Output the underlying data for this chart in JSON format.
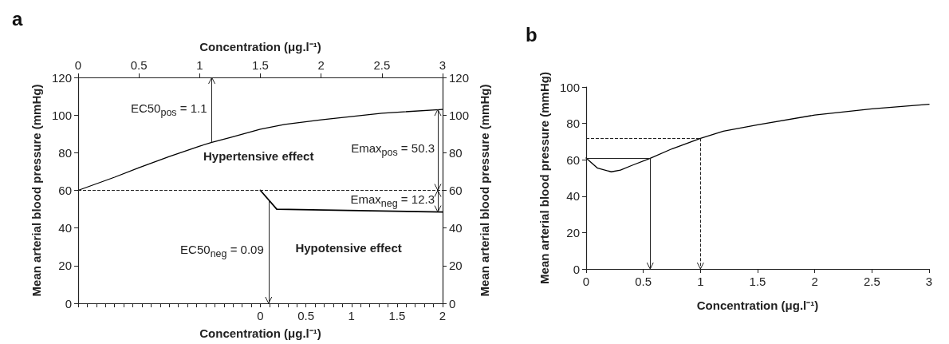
{
  "chart_data": [
    {
      "type": "line",
      "title": "a",
      "xlabel": "Concentration (μg.l⁻¹)",
      "x2label": "Concentration (μg.l⁻¹)",
      "ylabel": "Mean arterial blood pressure (mmHg)",
      "y2label": "Mean arterial blood pressure (mmHg)",
      "xlim": [
        -2,
        2
      ],
      "xticks": [
        {
          "value": -2,
          "label": null
        },
        {
          "value": -1.9,
          "label": null
        },
        {
          "value": -1.8,
          "label": null
        },
        {
          "value": -1.7,
          "label": null
        },
        {
          "value": -1.6,
          "label": null
        },
        {
          "value": -1.5,
          "label": null
        },
        {
          "value": -1.4,
          "label": null
        },
        {
          "value": -1.3,
          "label": null
        },
        {
          "value": -1.2,
          "label": null
        },
        {
          "value": -1.1,
          "label": null
        },
        {
          "value": -1,
          "label": null
        },
        {
          "value": -0.9,
          "label": null
        },
        {
          "value": -0.8,
          "label": null
        },
        {
          "value": -0.7,
          "label": null
        },
        {
          "value": -0.6,
          "label": null
        },
        {
          "value": -0.5,
          "label": null
        },
        {
          "value": -0.4,
          "label": null
        },
        {
          "value": -0.3,
          "label": null
        },
        {
          "value": -0.2,
          "label": null
        },
        {
          "value": -0.1,
          "label": null
        },
        0,
        {
          "value": 0.1,
          "label": null
        },
        {
          "value": 0.2,
          "label": null
        },
        {
          "value": 0.3,
          "label": null
        },
        {
          "value": 0.4,
          "label": null
        },
        0.5,
        {
          "value": 0.6,
          "label": null
        },
        {
          "value": 0.7,
          "label": null
        },
        {
          "value": 0.8,
          "label": null
        },
        {
          "value": 0.9,
          "label": null
        },
        1,
        {
          "value": 1.1,
          "label": null
        },
        {
          "value": 1.2,
          "label": null
        },
        {
          "value": 1.3,
          "label": null
        },
        {
          "value": 1.4,
          "label": null
        },
        1.5,
        {
          "value": 1.6,
          "label": null
        },
        {
          "value": 1.7,
          "label": null
        },
        {
          "value": 1.8,
          "label": null
        },
        {
          "value": 1.9,
          "label": null
        },
        2
      ],
      "x2lim": [
        0,
        3
      ],
      "x2ticks": [
        0,
        0.5,
        1,
        1.5,
        2,
        2.5,
        3
      ],
      "ylim": [
        0,
        120
      ],
      "yticks": [
        0,
        20,
        40,
        60,
        80,
        100,
        120
      ],
      "y2lim": [
        0,
        120
      ],
      "y2ticks": [
        0,
        20,
        40,
        60,
        80,
        100,
        120
      ],
      "marker": "none",
      "series": [
        {
          "axis": "x2",
          "color": "#000000",
          "x": [
            0,
            0.3,
            0.5,
            0.75,
            1,
            1.1,
            1.25,
            1.5,
            1.7,
            2,
            2.5,
            3
          ],
          "values": [
            60,
            67,
            72,
            78,
            83.5,
            85.5,
            88,
            92.5,
            95,
            97.5,
            101,
            103
          ]
        },
        {
          "color": "#000000",
          "x": [
            0,
            0.18,
            2
          ],
          "values": [
            60,
            50,
            48.5
          ]
        }
      ],
      "ref_lines": [
        {
          "axis": "y",
          "value": 60,
          "line_style": "dashed"
        },
        {
          "axis": "x2",
          "value": 1.1,
          "label": "EC50$_{pos}$ = 1.1"
        },
        {
          "axis": "x",
          "value": 0.09,
          "label": "EC50$_{neg}$ = 0.09"
        }
      ],
      "annotations": [
        "Hypertensive effect",
        {
          "text": "Emax$_{pos}$ = 50.3",
          "y": 103
        },
        {
          "text": "Emax$_{neg}$ = 12.3",
          "x": 2,
          "y": 48.5
        },
        "Hypotensive effect"
      ]
    },
    {
      "type": "line",
      "title": "b",
      "xlabel": "Concentration (μg.l⁻¹)",
      "ylabel": "Mean arterial blood pressure (mmHg)",
      "xlim": [
        0,
        3
      ],
      "xticks": [
        0,
        0.5,
        1,
        1.5,
        2,
        2.5,
        3
      ],
      "ylim": [
        0,
        100
      ],
      "yticks": [
        0,
        20,
        40,
        60,
        80,
        100
      ],
      "marker": "none",
      "series": [
        {
          "color": "#000000",
          "x": [
            0,
            0.1,
            0.22,
            0.3,
            0.4,
            0.56,
            0.75,
            1,
            1.2,
            1.5,
            2,
            2.5,
            3
          ],
          "values": [
            61,
            55.4,
            53.4,
            54.3,
            56.9,
            60.8,
            66,
            71.8,
            75.7,
            79.2,
            84.6,
            88,
            90.5
          ]
        }
      ],
      "ref_lines": [
        {
          "axis": "x",
          "value": 0.56
        },
        {
          "axis": "x",
          "value": 1,
          "line_style": "dashed"
        },
        {
          "axis": "y",
          "value": 61
        },
        {
          "axis": "y",
          "value": 72,
          "line_style": "dashed"
        }
      ]
    }
  ]
}
